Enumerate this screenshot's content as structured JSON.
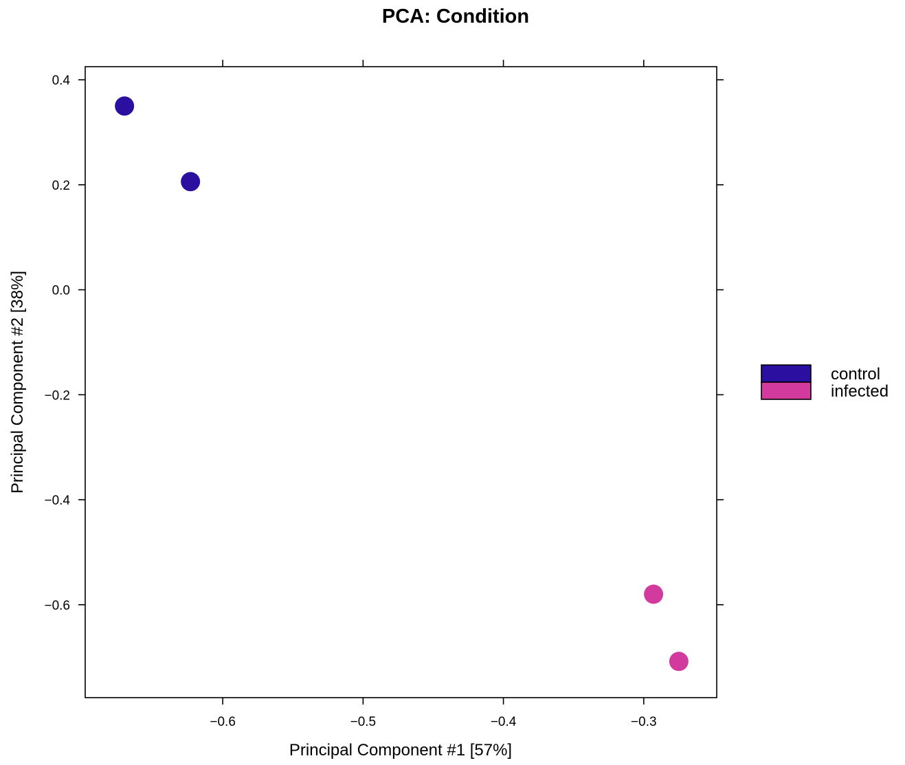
{
  "chart_data": {
    "type": "scatter",
    "title": "PCA: Condition",
    "xlabel": "Principal Component #1 [57%]",
    "ylabel": "Principal Component #2 [38%]",
    "xlim": [
      -0.698,
      -0.248
    ],
    "ylim": [
      -0.777,
      0.425
    ],
    "x_ticks": [
      -0.6,
      -0.5,
      -0.4,
      -0.3
    ],
    "x_tick_labels": [
      "−0.6",
      "−0.5",
      "−0.4",
      "−0.3"
    ],
    "y_ticks": [
      0.4,
      0.2,
      0.0,
      -0.2,
      -0.4,
      -0.6
    ],
    "y_tick_labels": [
      "0.4",
      "0.2",
      "0.0",
      "−0.2",
      "−0.4",
      "−0.6"
    ],
    "grid": false,
    "legend_position": "right",
    "series": [
      {
        "name": "control",
        "color": "#2A0FA0",
        "x": [
          -0.67,
          -0.623
        ],
        "y": [
          0.35,
          0.206
        ]
      },
      {
        "name": "infected",
        "color": "#D23A9E",
        "x": [
          -0.293,
          -0.275
        ],
        "y": [
          -0.58,
          -0.708
        ]
      }
    ]
  }
}
